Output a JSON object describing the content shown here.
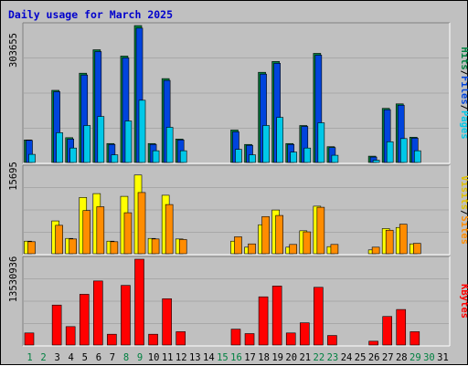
{
  "title": "Daily usage for March 2025",
  "colors": {
    "hits": "#008040",
    "hits_fill": "#0044dd",
    "files": "#0044dd",
    "pages": "#00c8e8",
    "visits": "#ffff00",
    "sites": "#ff8c00",
    "kbytes": "#ff0000",
    "background": "#c0c0c0",
    "grid": "#a8a8a8"
  },
  "chart_data": {
    "type": "bar",
    "categories": [
      "1",
      "2",
      "3",
      "4",
      "5",
      "6",
      "7",
      "8",
      "9",
      "10",
      "11",
      "12",
      "13",
      "14",
      "15",
      "16",
      "17",
      "18",
      "19",
      "20",
      "21",
      "22",
      "23",
      "24",
      "25",
      "26",
      "27",
      "28",
      "29",
      "30",
      "31"
    ],
    "weekend_days": [
      "1",
      "2",
      "8",
      "9",
      "15",
      "16",
      "22",
      "23",
      "29",
      "30"
    ],
    "panels": [
      {
        "id": "hits_files_pages",
        "ymax_label": "303655",
        "ymax": 303655,
        "side_labels": [
          "Hits",
          "/",
          "Files",
          "/",
          "Pages"
        ],
        "series": [
          {
            "name": "Hits",
            "values": [
              50000,
              0,
              160000,
              55000,
              198000,
              250000,
              42000,
              236000,
              303655,
              42000,
              186000,
              52000,
              0,
              0,
              0,
              72000,
              40000,
              200000,
              224000,
              42000,
              82000,
              242000,
              35000,
              0,
              0,
              14000,
              120000,
              130000,
              56000,
              0,
              0
            ]
          },
          {
            "name": "Files",
            "values": [
              49000,
              0,
              157000,
              52000,
              194000,
              246000,
              40000,
              232000,
              298000,
              40000,
              182000,
              50000,
              0,
              0,
              0,
              68000,
              38000,
              196000,
              220000,
              40000,
              80000,
              238000,
              33000,
              0,
              0,
              12000,
              117000,
              127000,
              54000,
              0,
              0
            ]
          },
          {
            "name": "Pages",
            "values": [
              18000,
              0,
              66000,
              32000,
              82000,
              102000,
              17000,
              92000,
              138000,
              26000,
              78000,
              26000,
              0,
              0,
              0,
              29000,
              17000,
              82000,
              100000,
              23000,
              32000,
              88000,
              16000,
              0,
              0,
              5000,
              46000,
              53000,
              26000,
              0,
              0
            ]
          }
        ]
      },
      {
        "id": "visits_sites",
        "ymax_label": "15695",
        "ymax": 15695,
        "side_labels": [
          "Visits",
          "/",
          "Sites"
        ],
        "series": [
          {
            "name": "Visits",
            "values": [
              2300,
              0,
              6000,
              2800,
              10300,
              11000,
              2300,
              10500,
              14400,
              2800,
              10700,
              2700,
              0,
              0,
              0,
              2300,
              1200,
              5300,
              8000,
              1200,
              4200,
              8700,
              1300,
              0,
              0,
              700,
              4600,
              4800,
              1800,
              0,
              0
            ]
          },
          {
            "name": "Sites",
            "values": [
              2200,
              0,
              5200,
              2700,
              7900,
              8600,
              2200,
              7500,
              11200,
              2700,
              9000,
              2600,
              0,
              0,
              0,
              3100,
              1800,
              6800,
              7000,
              1700,
              4000,
              8500,
              1700,
              0,
              0,
              1200,
              4300,
              5400,
              1900,
              0,
              0
            ]
          }
        ]
      },
      {
        "id": "kbytes",
        "ymax_label": "13530936",
        "ymax": 13530936,
        "side_labels": [
          "KBytes"
        ],
        "series": [
          {
            "name": "KBytes",
            "values": [
              1900000,
              0,
              6300000,
              2900000,
              8000000,
              10100000,
              1700000,
              9400000,
              13530936,
              1700000,
              7300000,
              2100000,
              0,
              0,
              0,
              2500000,
              1800000,
              7600000,
              9300000,
              1900000,
              3500000,
              9100000,
              1500000,
              0,
              0,
              600000,
              4500000,
              5600000,
              2100000,
              0,
              0
            ]
          }
        ]
      }
    ]
  }
}
